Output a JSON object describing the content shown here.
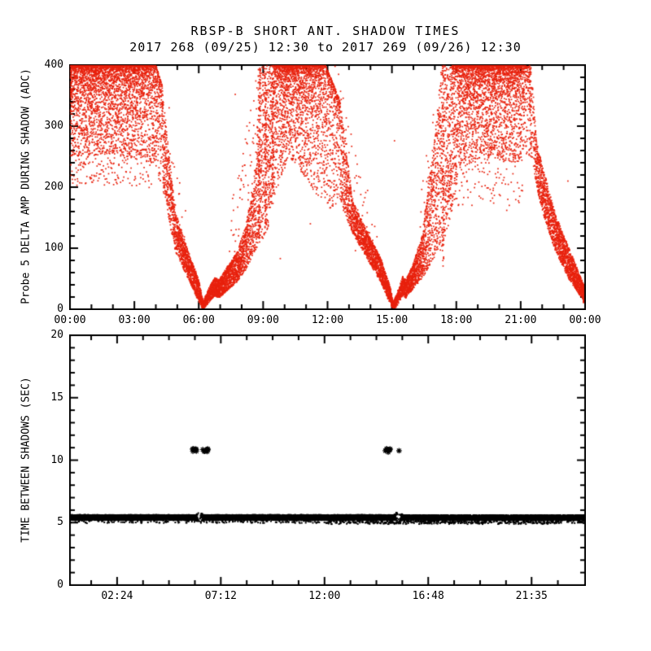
{
  "header": {
    "title": "RBSP-B SHORT ANT. SHADOW TIMES",
    "subtitle": "2017 268 (09/25) 12:30 to 2017 269 (09/26) 12:30"
  },
  "colors": {
    "background": "#ffffff",
    "axis": "#000000",
    "top_series": "#e8220e",
    "bottom_series": "#000000"
  },
  "chart_data": [
    {
      "id": "top",
      "type": "scatter",
      "ylabel": "Probe 5 DELTA AMP DURING SHADOW (ADC)",
      "color": "#e8220e",
      "seed": 11,
      "marker_px": 1.7,
      "x_range": [
        0,
        24
      ],
      "y_range": [
        0,
        400
      ],
      "x_minor_step": 1,
      "y_minor_step": 20,
      "x_ticks": [
        {
          "v": 0,
          "label": "00:00"
        },
        {
          "v": 3,
          "label": "03:00"
        },
        {
          "v": 6,
          "label": "06:00"
        },
        {
          "v": 9,
          "label": "09:00"
        },
        {
          "v": 12,
          "label": "12:00"
        },
        {
          "v": 15,
          "label": "15:00"
        },
        {
          "v": 18,
          "label": "18:00"
        },
        {
          "v": 21,
          "label": "21:00"
        },
        {
          "v": 24,
          "label": "00:00"
        }
      ],
      "y_ticks": [
        {
          "v": 0,
          "label": "0"
        },
        {
          "v": 100,
          "label": "100"
        },
        {
          "v": 200,
          "label": "200"
        },
        {
          "v": 300,
          "label": "300"
        },
        {
          "v": 400,
          "label": "400"
        }
      ],
      "shadow_minima_hours": [
        6.2,
        15.0
      ],
      "envelope": [
        [
          0.0,
          250,
          400,
          900,
          "t"
        ],
        [
          2.0,
          255,
          400,
          850,
          "t"
        ],
        [
          3.2,
          245,
          400,
          800,
          "t"
        ],
        [
          4.0,
          232,
          400,
          700,
          "t"
        ],
        [
          4.3,
          200,
          365,
          560,
          "u"
        ],
        [
          4.9,
          96,
          162,
          650,
          "u"
        ],
        [
          5.5,
          50,
          96,
          800,
          "u"
        ],
        [
          6.0,
          12,
          48,
          900,
          "u"
        ],
        [
          6.2,
          0,
          12,
          1000,
          "u"
        ],
        [
          6.45,
          10,
          34,
          600,
          "u"
        ],
        [
          6.75,
          22,
          52,
          900,
          "u"
        ],
        [
          6.95,
          18,
          48,
          900,
          "u"
        ],
        [
          7.3,
          30,
          68,
          800,
          "u"
        ],
        [
          7.8,
          45,
          95,
          700,
          "u"
        ],
        [
          8.2,
          65,
          140,
          620,
          "u"
        ],
        [
          8.6,
          95,
          210,
          560,
          "u"
        ],
        [
          8.85,
          110,
          395,
          650,
          "u"
        ],
        [
          9.15,
          120,
          400,
          700,
          "u"
        ],
        [
          9.5,
          180,
          400,
          800,
          "t"
        ],
        [
          10.2,
          250,
          400,
          900,
          "t"
        ],
        [
          11.0,
          215,
          400,
          800,
          "t"
        ],
        [
          11.9,
          161,
          400,
          650,
          "t"
        ],
        [
          12.6,
          175,
          340,
          520,
          "u"
        ],
        [
          13.2,
          122,
          175,
          600,
          "u"
        ],
        [
          13.8,
          86,
          130,
          650,
          "u"
        ],
        [
          14.45,
          46,
          86,
          750,
          "u"
        ],
        [
          14.95,
          7,
          33,
          900,
          "u"
        ],
        [
          15.05,
          0,
          10,
          1000,
          "u"
        ],
        [
          15.25,
          5,
          28,
          500,
          "u"
        ],
        [
          15.5,
          22,
          55,
          850,
          "u"
        ],
        [
          15.65,
          18,
          48,
          850,
          "u"
        ],
        [
          15.95,
          32,
          70,
          800,
          "u"
        ],
        [
          16.4,
          50,
          120,
          650,
          "u"
        ],
        [
          16.9,
          80,
          260,
          540,
          "u"
        ],
        [
          17.35,
          100,
          400,
          620,
          "u"
        ],
        [
          17.8,
          160,
          400,
          700,
          "t"
        ],
        [
          18.3,
          235,
          400,
          850,
          "t"
        ],
        [
          19.6,
          248,
          400,
          850,
          "t"
        ],
        [
          20.9,
          240,
          400,
          780,
          "t"
        ],
        [
          21.3,
          248,
          398,
          430,
          "t"
        ],
        [
          21.5,
          250,
          395,
          170,
          "u"
        ],
        [
          21.75,
          197,
          272,
          620,
          "u"
        ],
        [
          22.0,
          162,
          237,
          680,
          "u"
        ],
        [
          22.6,
          96,
          157,
          760,
          "u"
        ],
        [
          23.3,
          46,
          96,
          830,
          "u"
        ],
        [
          23.9,
          16,
          43,
          880,
          "u"
        ],
        [
          24.0,
          8,
          38,
          900,
          "u"
        ]
      ],
      "halo": [
        [
          [
            0.0,
            200,
            260,
            55,
            "u"
          ],
          [
            2.5,
            205,
            262,
            45,
            "u"
          ],
          [
            4.2,
            195,
            300,
            30,
            "u"
          ],
          [
            4.3,
            195,
            300,
            0,
            "u"
          ]
        ],
        [
          [
            4.3,
            180,
            330,
            60,
            "u"
          ],
          [
            4.9,
            140,
            240,
            40,
            "u"
          ],
          [
            5.4,
            100,
            170,
            22,
            "u"
          ],
          [
            5.8,
            60,
            120,
            0,
            "u"
          ]
        ],
        [
          [
            7.4,
            70,
            150,
            25,
            "u"
          ],
          [
            8.2,
            140,
            300,
            45,
            "u"
          ],
          [
            8.6,
            200,
            380,
            60,
            "u"
          ],
          [
            8.85,
            220,
            390,
            0,
            "u"
          ]
        ],
        [
          [
            12.5,
            210,
            390,
            55,
            "u"
          ],
          [
            13.3,
            150,
            260,
            40,
            "u"
          ],
          [
            14.0,
            110,
            180,
            22,
            "u"
          ],
          [
            14.4,
            60,
            120,
            0,
            "u"
          ]
        ],
        [
          [
            16.3,
            100,
            200,
            25,
            "u"
          ],
          [
            16.9,
            160,
            320,
            45,
            "u"
          ],
          [
            17.3,
            200,
            390,
            50,
            "u"
          ],
          [
            17.6,
            220,
            395,
            0,
            "u"
          ]
        ],
        [
          [
            17.5,
            170,
            250,
            35,
            "u"
          ],
          [
            21.0,
            170,
            250,
            30,
            "u"
          ],
          [
            21.2,
            170,
            250,
            0,
            "u"
          ]
        ]
      ],
      "columns": [
        [
          8.82,
          0.1,
          95,
          400,
          110
        ],
        [
          9.12,
          0.07,
          140,
          400,
          85
        ],
        [
          9.45,
          0.06,
          200,
          400,
          55
        ],
        [
          17.38,
          0.08,
          70,
          400,
          70
        ],
        [
          21.45,
          0.12,
          245,
          400,
          50
        ]
      ],
      "strays": [
        [
          1.8,
          222
        ],
        [
          3.05,
          214
        ],
        [
          4.62,
          330
        ],
        [
          7.7,
          352
        ],
        [
          9.8,
          83
        ],
        [
          11.2,
          140
        ],
        [
          12.35,
          398
        ],
        [
          13.3,
          96
        ],
        [
          15.12,
          276
        ],
        [
          20.35,
          162
        ],
        [
          23.2,
          210
        ]
      ]
    },
    {
      "id": "bottom",
      "type": "scatter",
      "ylabel": "TIME BETWEEN SHADOWS (SEC)",
      "color": "#000000",
      "seed": 23,
      "marker_px": 2.0,
      "x_range": [
        0.219,
        24.06
      ],
      "y_range": [
        0,
        20
      ],
      "x_minor_step": 1.2,
      "y_minor_step": 1,
      "x_ticks": [
        {
          "v": 2.4,
          "label": "02:24"
        },
        {
          "v": 7.2,
          "label": "07:12"
        },
        {
          "v": 12.0,
          "label": "12:00"
        },
        {
          "v": 16.8,
          "label": "16:48"
        },
        {
          "v": 21.5833,
          "label": "21:35"
        }
      ],
      "y_ticks": [
        {
          "v": 0,
          "label": "0"
        },
        {
          "v": 5,
          "label": "5"
        },
        {
          "v": 10,
          "label": "10"
        },
        {
          "v": 15,
          "label": "15"
        },
        {
          "v": 20,
          "label": "20"
        }
      ],
      "band_value_sec": 5.4,
      "outlier_value_sec": 10.7,
      "envelope": [
        [
          0.219,
          5.2,
          5.62,
          450,
          "u"
        ],
        [
          6.05,
          5.2,
          5.62,
          450,
          "u"
        ],
        [
          6.14,
          5.05,
          5.8,
          140,
          "u"
        ],
        [
          6.2,
          5.2,
          5.6,
          0,
          "u"
        ],
        [
          6.3,
          5.05,
          5.8,
          140,
          "u"
        ],
        [
          6.42,
          5.2,
          5.62,
          450,
          "u"
        ],
        [
          15.25,
          5.2,
          5.62,
          450,
          "u"
        ],
        [
          15.33,
          5.05,
          5.85,
          150,
          "u"
        ],
        [
          15.42,
          5.2,
          5.6,
          0,
          "u"
        ],
        [
          15.52,
          5.0,
          5.8,
          150,
          "u"
        ],
        [
          15.62,
          5.2,
          5.6,
          430,
          "u"
        ],
        [
          24.06,
          5.2,
          5.6,
          430,
          "u"
        ]
      ],
      "halo": [
        [
          [
            0.219,
            4.95,
            5.18,
            12,
            "u"
          ],
          [
            10.0,
            4.95,
            5.18,
            14,
            "u"
          ],
          [
            24.06,
            4.95,
            5.18,
            14,
            "u"
          ]
        ],
        [
          [
            12.0,
            4.88,
            5.12,
            22,
            "u"
          ],
          [
            22.8,
            4.88,
            5.12,
            22,
            "u"
          ],
          [
            23.0,
            4.88,
            5.12,
            0,
            "u"
          ]
        ]
      ],
      "outlier_clusters": [
        [
          5.88,
          6.12,
          10.62,
          10.92,
          9
        ],
        [
          6.36,
          6.64,
          10.62,
          10.92,
          7
        ],
        [
          14.76,
          15.04,
          10.62,
          10.92,
          9
        ]
      ],
      "outlier_singles": [
        [
          15.45,
          10.76
        ]
      ]
    }
  ]
}
